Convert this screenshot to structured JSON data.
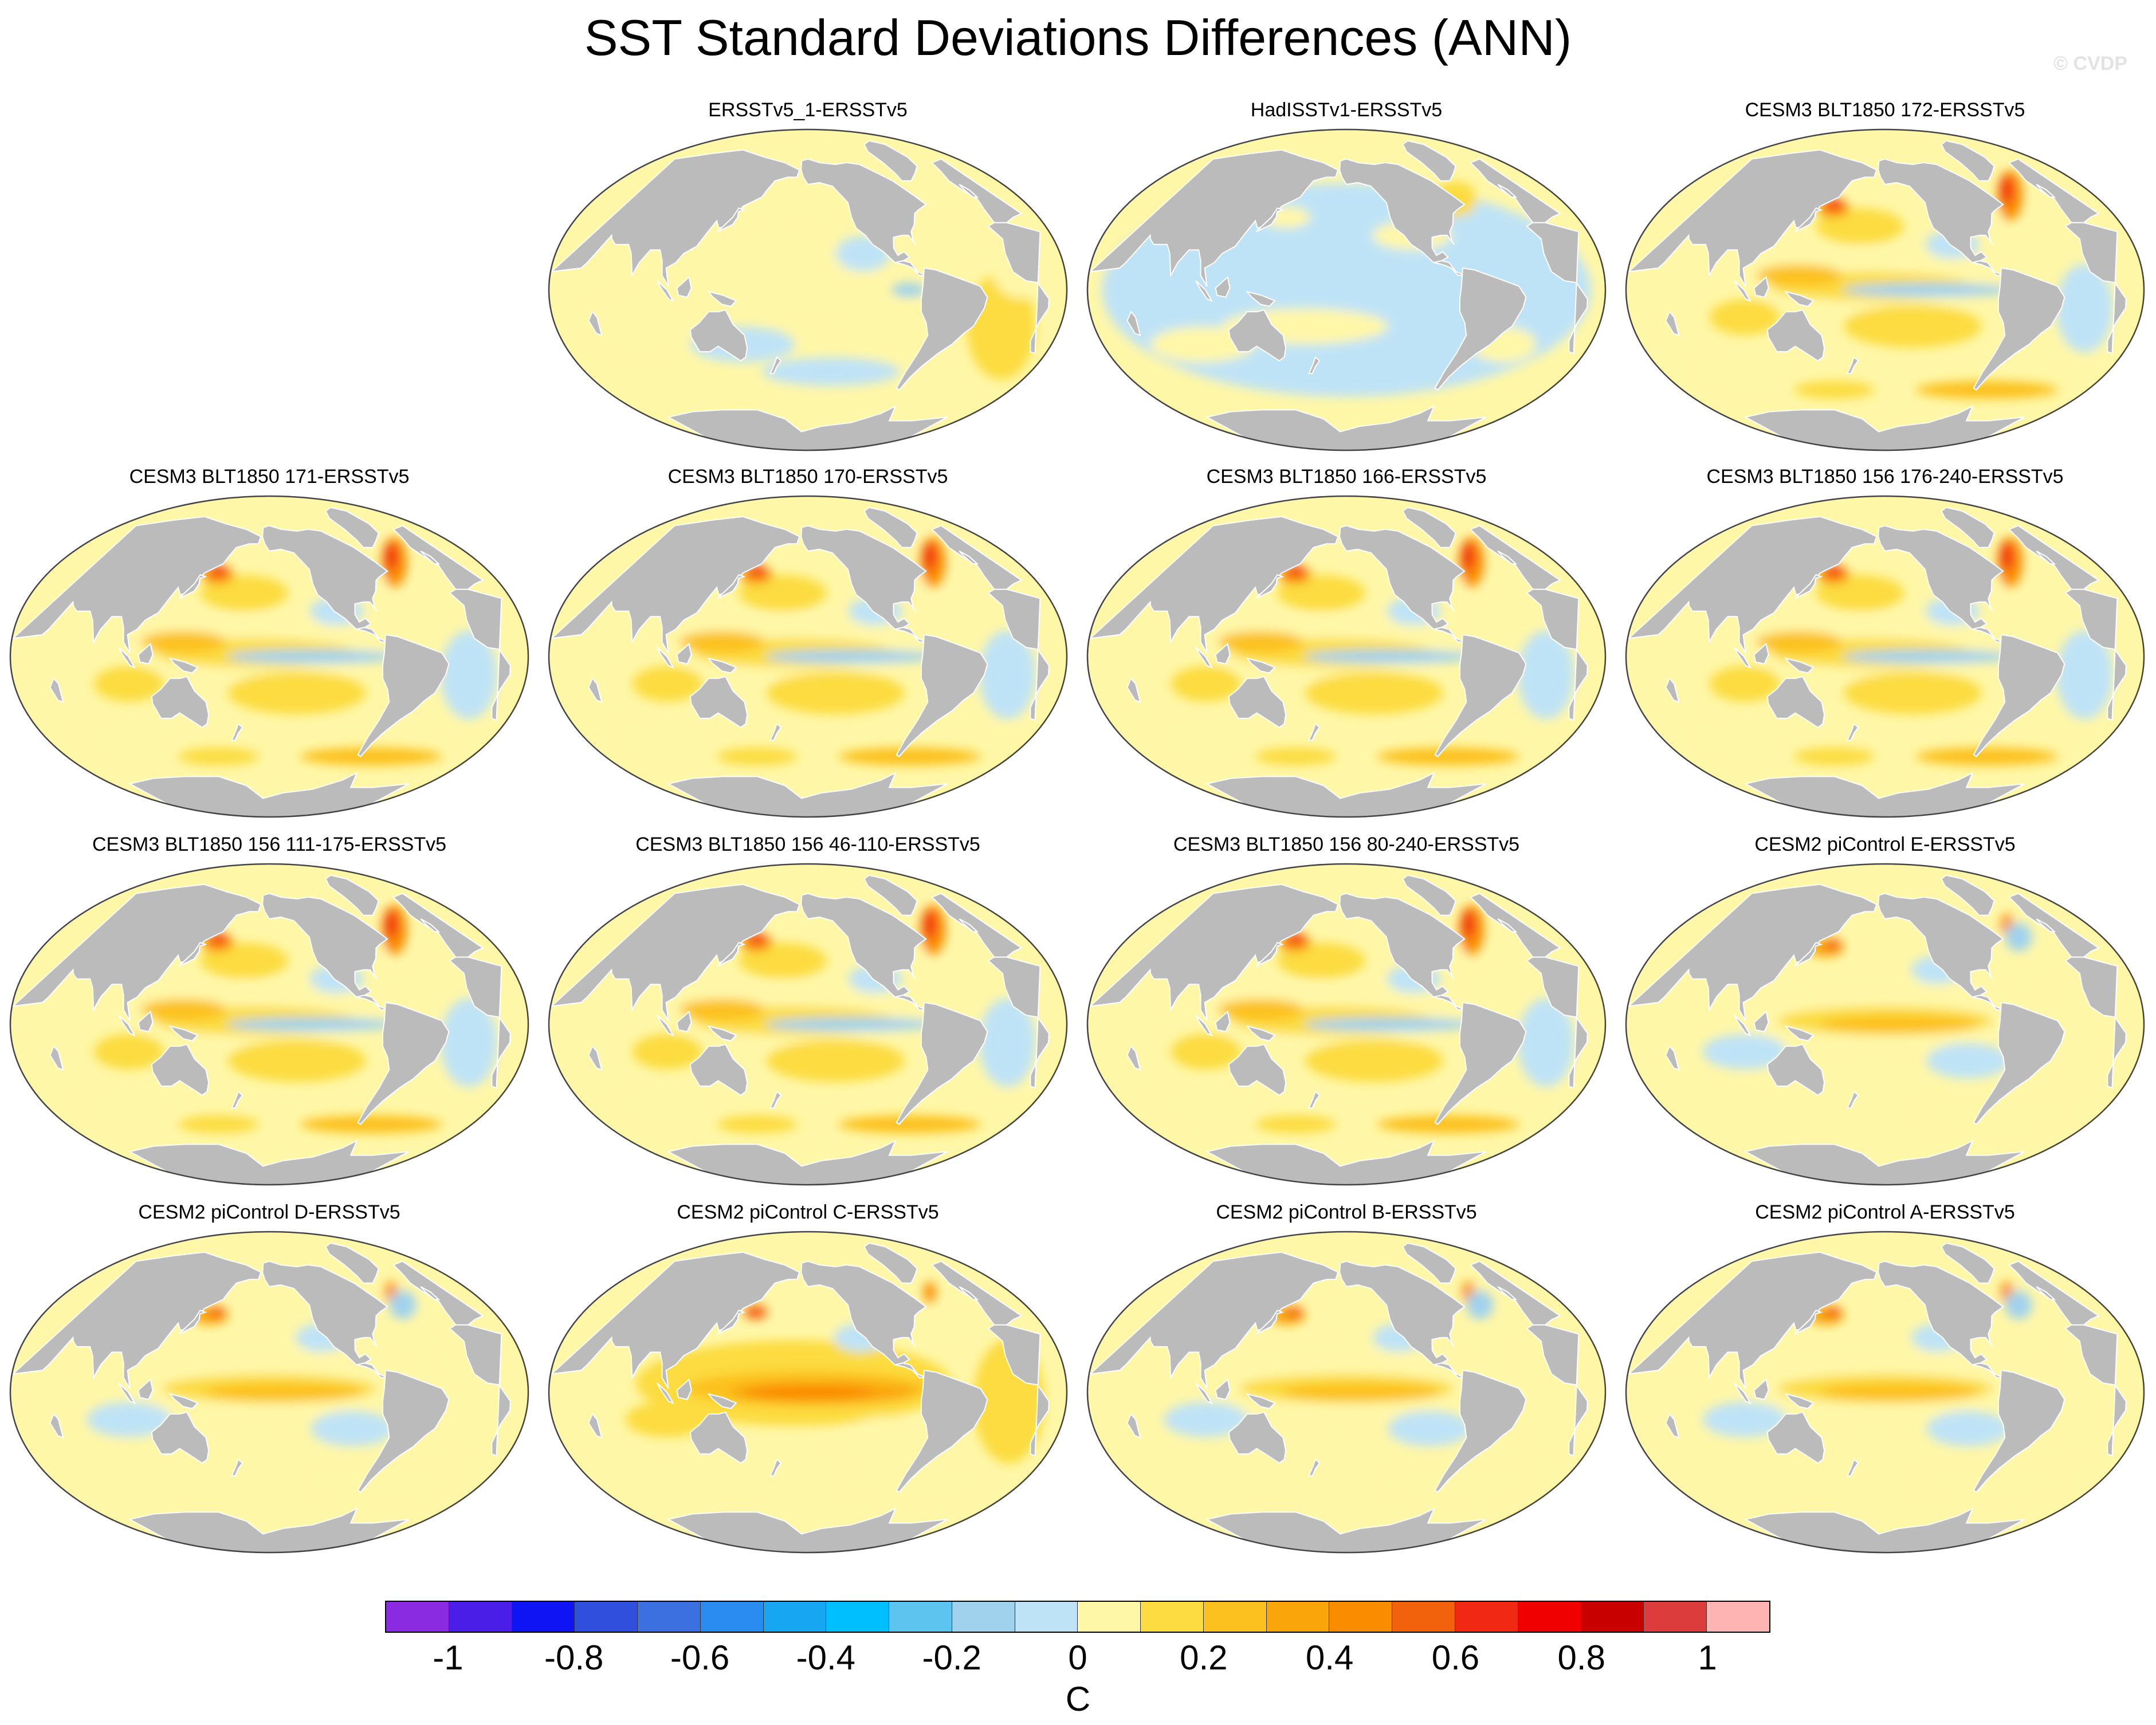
{
  "title": "SST Standard Deviations Differences (ANN)",
  "watermark": "© CVDP",
  "colorbar": {
    "units": "C",
    "labels": [
      "-1",
      "-0.8",
      "-0.6",
      "-0.4",
      "-0.2",
      "0",
      "0.2",
      "0.4",
      "0.6",
      "0.8",
      "1"
    ],
    "colors": [
      "#8a2be2",
      "#4b1ee8",
      "#0f14f5",
      "#2f4fdc",
      "#3c70e0",
      "#2a8cf0",
      "#17a6f2",
      "#00bfff",
      "#5cc4ee",
      "#a0d2ee",
      "#bfe3f6",
      "#fff7a8",
      "#fcdc40",
      "#fcc11e",
      "#faa60a",
      "#fa8c00",
      "#f2620d",
      "#f02814",
      "#f00000",
      "#c80000",
      "#dc3c3c",
      "#ffb4b4"
    ]
  },
  "land_color": "#bbbbbb",
  "panels": [
    {
      "title": "ERSSTv5_1-ERSSTv5",
      "pattern": "noise-small"
    },
    {
      "title": "HadISSTv1-ERSSTv5",
      "pattern": "mostly-negative"
    },
    {
      "title": "CESM3 BLT1850 172-ERSSTv5",
      "pattern": "cesm3"
    },
    {
      "title": "CESM3 BLT1850 171-ERSSTv5",
      "pattern": "cesm3"
    },
    {
      "title": "CESM3 BLT1850 170-ERSSTv5",
      "pattern": "cesm3"
    },
    {
      "title": "CESM3 BLT1850 166-ERSSTv5",
      "pattern": "cesm3"
    },
    {
      "title": "CESM3 BLT1850 156 176-240-ERSSTv5",
      "pattern": "cesm3"
    },
    {
      "title": "CESM3 BLT1850 156 111-175-ERSSTv5",
      "pattern": "cesm3"
    },
    {
      "title": "CESM3 BLT1850 156 46-110-ERSSTv5",
      "pattern": "cesm3"
    },
    {
      "title": "CESM3 BLT1850 156 80-240-ERSSTv5",
      "pattern": "cesm3"
    },
    {
      "title": "CESM2 piControl E-ERSSTv5",
      "pattern": "cesm2"
    },
    {
      "title": "CESM2 piControl D-ERSSTv5",
      "pattern": "cesm2"
    },
    {
      "title": "CESM2 piControl C-ERSSTv5",
      "pattern": "cesm2-strong"
    },
    {
      "title": "CESM2 piControl B-ERSSTv5",
      "pattern": "cesm2"
    },
    {
      "title": "CESM2 piControl A-ERSSTv5",
      "pattern": "cesm2"
    }
  ]
}
